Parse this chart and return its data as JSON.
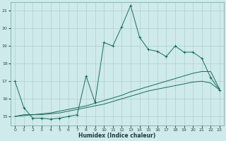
{
  "title": "",
  "xlabel": "Humidex (Indice chaleur)",
  "ylabel": "",
  "background_color": "#ceeaea",
  "grid_color": "#b0d0d0",
  "line_color": "#1a6b5a",
  "xlim": [
    -0.5,
    23.5
  ],
  "ylim": [
    14.5,
    21.5
  ],
  "yticks": [
    15,
    16,
    17,
    18,
    19,
    20,
    21
  ],
  "xticks": [
    0,
    1,
    2,
    3,
    4,
    5,
    6,
    7,
    8,
    9,
    10,
    11,
    12,
    13,
    14,
    15,
    16,
    17,
    18,
    19,
    20,
    21,
    22,
    23
  ],
  "series1_x": [
    0,
    1,
    2,
    3,
    4,
    5,
    6,
    7,
    8,
    9,
    10,
    11,
    12,
    13,
    14,
    15,
    16,
    17,
    18,
    19,
    20,
    21,
    22,
    23
  ],
  "series1_y": [
    17.0,
    15.5,
    14.9,
    14.9,
    14.85,
    14.9,
    15.0,
    15.1,
    17.3,
    15.8,
    19.2,
    19.0,
    20.1,
    21.3,
    19.5,
    18.8,
    18.7,
    18.4,
    19.0,
    18.65,
    18.65,
    18.3,
    17.2,
    16.5
  ],
  "series2_x": [
    0,
    1,
    2,
    3,
    4,
    5,
    6,
    7,
    8,
    9,
    10,
    11,
    12,
    13,
    14,
    15,
    16,
    17,
    18,
    19,
    20,
    21,
    22,
    23
  ],
  "series2_y": [
    15.0,
    15.1,
    15.1,
    15.15,
    15.2,
    15.3,
    15.4,
    15.5,
    15.6,
    15.75,
    15.9,
    16.05,
    16.2,
    16.4,
    16.55,
    16.7,
    16.85,
    17.0,
    17.15,
    17.3,
    17.45,
    17.55,
    17.55,
    16.55
  ],
  "series3_x": [
    0,
    1,
    2,
    3,
    4,
    5,
    6,
    7,
    8,
    9,
    10,
    11,
    12,
    13,
    14,
    15,
    16,
    17,
    18,
    19,
    20,
    21,
    22,
    23
  ],
  "series3_y": [
    15.0,
    15.05,
    15.1,
    15.1,
    15.15,
    15.2,
    15.3,
    15.4,
    15.5,
    15.6,
    15.7,
    15.85,
    16.0,
    16.15,
    16.3,
    16.45,
    16.55,
    16.65,
    16.75,
    16.85,
    16.95,
    17.0,
    16.9,
    16.5
  ]
}
